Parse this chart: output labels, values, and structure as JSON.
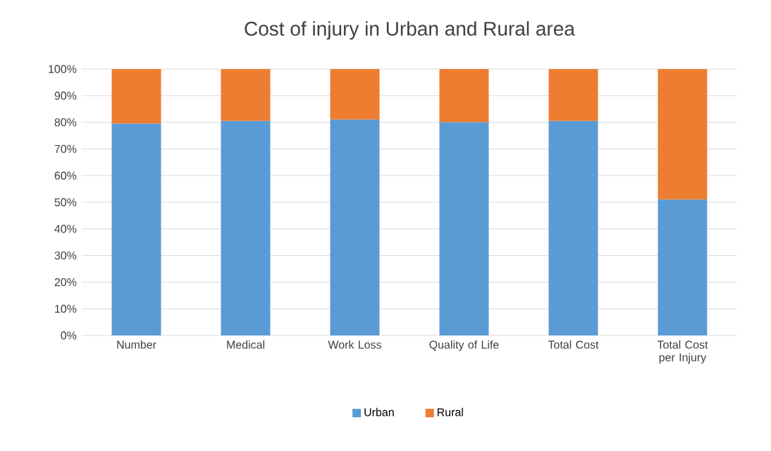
{
  "chart_data": {
    "type": "bar",
    "title": "Cost of injury in Urban and Rural area",
    "stacked": true,
    "categories": [
      "Number",
      "Medical",
      "Work Loss",
      "Quality of Life",
      "Total Cost",
      "Total Cost per Injury"
    ],
    "series": [
      {
        "name": "Urban",
        "color": "#5b9bd5",
        "values": [
          79.5,
          80.5,
          81,
          80,
          80.5,
          51
        ]
      },
      {
        "name": "Rural",
        "color": "#ed7d31",
        "values": [
          20.5,
          19.5,
          19,
          20,
          19.5,
          49
        ]
      }
    ],
    "ylim": [
      0,
      100
    ],
    "yticks": [
      {
        "value": 0,
        "label": "0%"
      },
      {
        "value": 10,
        "label": "10%"
      },
      {
        "value": 20,
        "label": "20%"
      },
      {
        "value": 30,
        "label": "30%"
      },
      {
        "value": 40,
        "label": "40%"
      },
      {
        "value": 50,
        "label": "50%"
      },
      {
        "value": 60,
        "label": "60%"
      },
      {
        "value": 70,
        "label": "70%"
      },
      {
        "value": 80,
        "label": "80%"
      },
      {
        "value": 90,
        "label": "90%"
      },
      {
        "value": 100,
        "label": "100%"
      }
    ],
    "grid": "y",
    "legend": "bottom"
  }
}
